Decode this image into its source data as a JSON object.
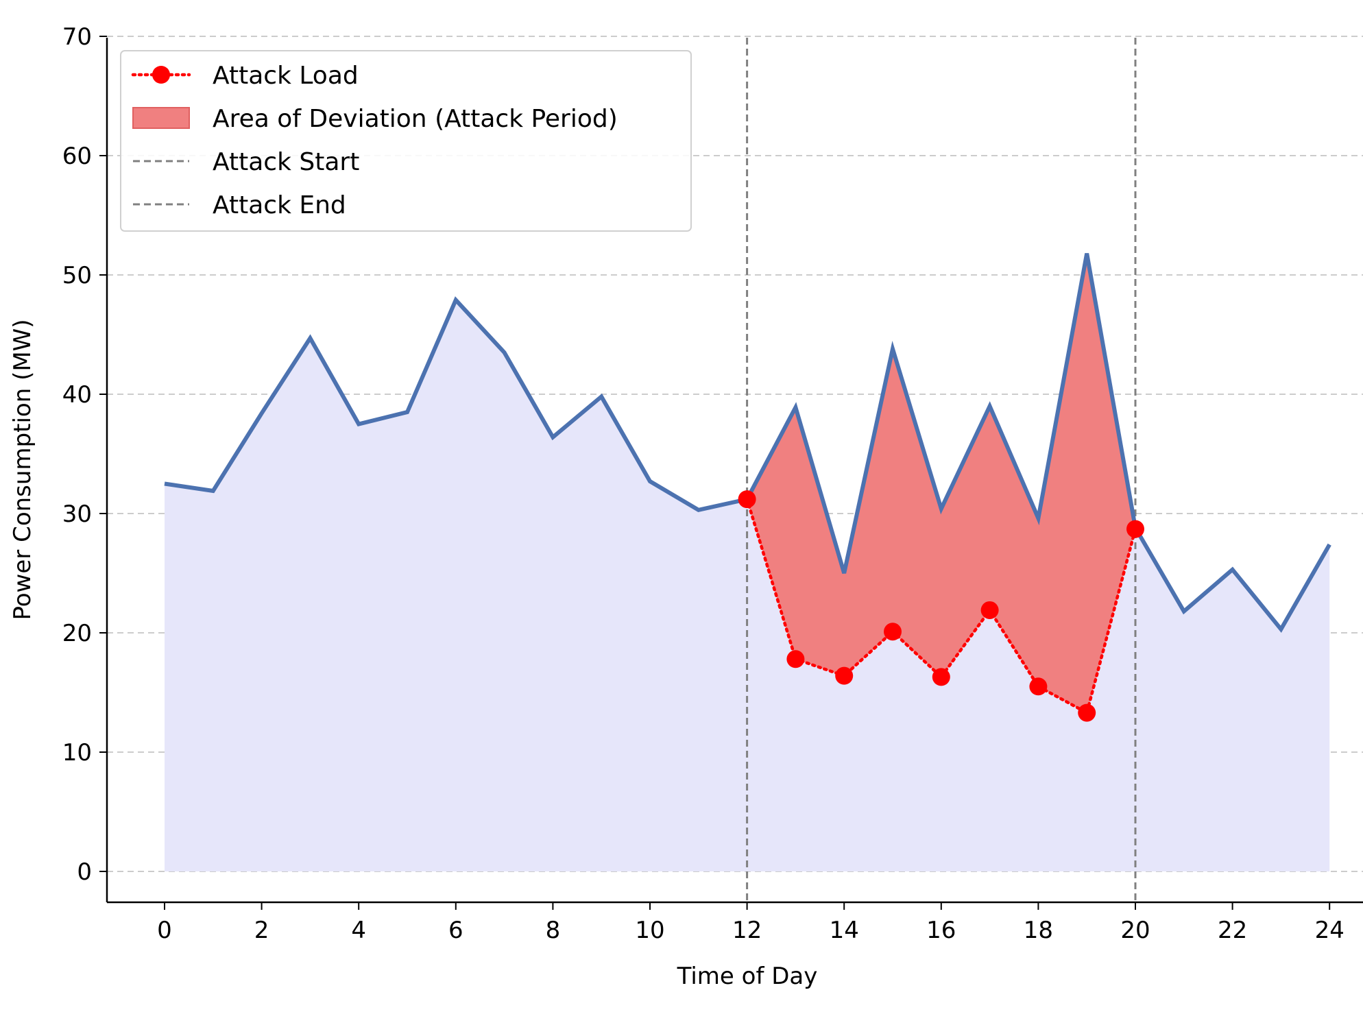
{
  "chart_data": {
    "type": "line",
    "title": "",
    "xlabel": "Time of Day",
    "ylabel": "Power Consumption (MW)",
    "xlim": [
      -1.2,
      24.6
    ],
    "ylim": [
      -2.6,
      70
    ],
    "x_ticks": [
      0,
      2,
      4,
      6,
      8,
      10,
      12,
      14,
      16,
      18,
      20,
      22,
      24
    ],
    "y_ticks": [
      0,
      10,
      20,
      30,
      40,
      50,
      60,
      70
    ],
    "grid": "y-axis dashed",
    "legend_position": "top-left",
    "x": [
      0,
      1,
      2,
      3,
      4,
      5,
      6,
      7,
      8,
      9,
      10,
      11,
      12,
      13,
      14,
      15,
      16,
      17,
      18,
      19,
      20,
      21,
      22,
      23,
      24
    ],
    "series": [
      {
        "values": [
          32.5,
          31.9,
          38.4,
          44.7,
          37.5,
          38.5,
          47.9,
          43.5,
          36.4,
          39.8,
          32.7,
          30.3,
          31.2,
          38.9,
          25.0,
          43.8,
          30.4,
          39.0,
          29.6,
          51.8,
          28.8,
          21.8,
          25.3,
          20.3,
          27.4
        ],
        "color": "#4c72b0",
        "fill_color": "#e6e6fa"
      },
      {
        "name": "Attack Load",
        "x": [
          12,
          13,
          14,
          15,
          16,
          17,
          18,
          19,
          20
        ],
        "values": [
          31.2,
          17.8,
          16.4,
          20.1,
          16.3,
          21.9,
          15.5,
          13.3,
          28.7
        ],
        "color": "#ff0000",
        "style": "dotted-with-markers"
      }
    ],
    "fill_between": {
      "name": "Area of Deviation (Attack Period)",
      "x_range": [
        12,
        20
      ],
      "color": "#f08080"
    },
    "vlines": [
      {
        "name": "Attack Start",
        "x": 12,
        "color": "#808080",
        "style": "dashed"
      },
      {
        "name": "Attack End",
        "x": 20,
        "color": "#808080",
        "style": "dashed"
      }
    ],
    "legend": [
      "Attack Load",
      "Area of Deviation (Attack Period)",
      "Attack Start",
      "Attack End"
    ]
  }
}
